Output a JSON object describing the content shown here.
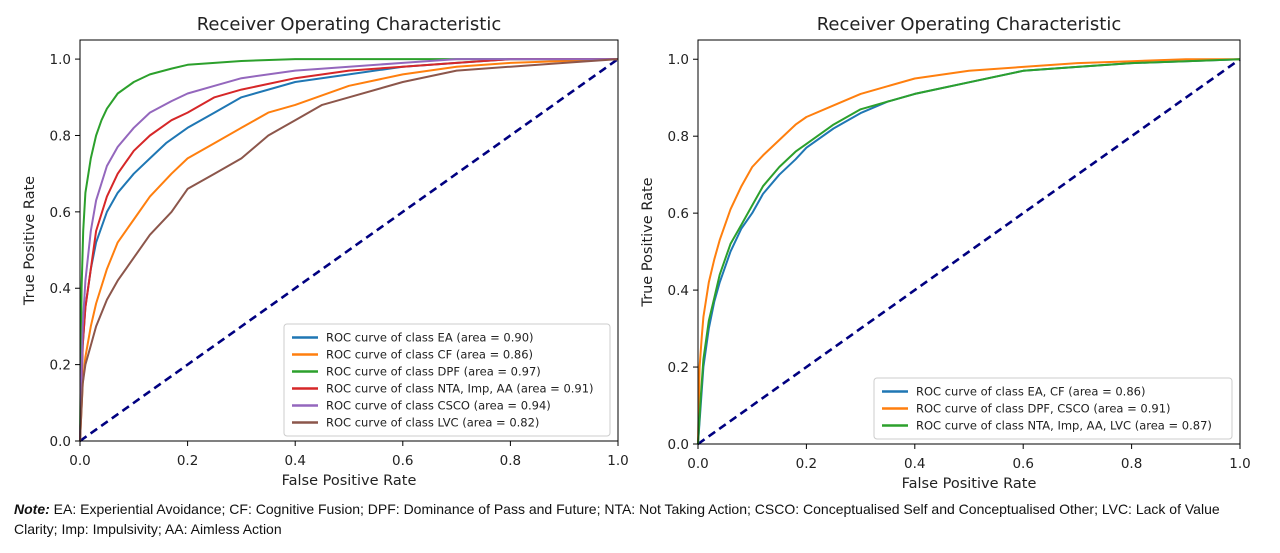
{
  "chart_data": [
    {
      "type": "line",
      "title": "Receiver Operating Characteristic",
      "xlabel": "False Positive Rate",
      "ylabel": "True Positive Rate",
      "xlim": [
        0,
        1
      ],
      "ylim": [
        0,
        1.05
      ],
      "xticks": [
        "0.0",
        "0.2",
        "0.4",
        "0.6",
        "0.8",
        "1.0"
      ],
      "yticks": [
        "0.0",
        "0.2",
        "0.4",
        "0.6",
        "0.8",
        "1.0"
      ],
      "legend_position": "lower-right",
      "grid": false,
      "diagonal": {
        "color": "#000080",
        "style": "dashed"
      },
      "series": [
        {
          "name": "ROC curve of class EA (area = 0.90)",
          "color": "#1f77b4",
          "x": [
            0,
            0.005,
            0.01,
            0.02,
            0.03,
            0.05,
            0.07,
            0.1,
            0.13,
            0.16,
            0.2,
            0.25,
            0.3,
            0.4,
            0.5,
            0.6,
            0.7,
            0.8,
            1.0
          ],
          "y": [
            0,
            0.25,
            0.35,
            0.45,
            0.52,
            0.6,
            0.65,
            0.7,
            0.74,
            0.78,
            0.82,
            0.86,
            0.9,
            0.94,
            0.96,
            0.98,
            0.99,
            1.0,
            1.0
          ]
        },
        {
          "name": "ROC curve of class CF (area = 0.86)",
          "color": "#ff7f0e",
          "x": [
            0,
            0.005,
            0.01,
            0.02,
            0.03,
            0.05,
            0.07,
            0.1,
            0.13,
            0.17,
            0.2,
            0.25,
            0.3,
            0.35,
            0.4,
            0.5,
            0.6,
            0.7,
            0.8,
            1.0
          ],
          "y": [
            0,
            0.15,
            0.22,
            0.3,
            0.36,
            0.45,
            0.52,
            0.58,
            0.64,
            0.7,
            0.74,
            0.78,
            0.82,
            0.86,
            0.88,
            0.93,
            0.96,
            0.98,
            0.99,
            1.0
          ]
        },
        {
          "name": "ROC curve of class DPF (area = 0.97)",
          "color": "#2ca02c",
          "x": [
            0,
            0.003,
            0.006,
            0.01,
            0.02,
            0.03,
            0.04,
            0.05,
            0.07,
            0.1,
            0.13,
            0.17,
            0.2,
            0.3,
            0.4,
            1.0
          ],
          "y": [
            0,
            0.4,
            0.55,
            0.65,
            0.74,
            0.8,
            0.84,
            0.87,
            0.91,
            0.94,
            0.96,
            0.975,
            0.985,
            0.995,
            1.0,
            1.0
          ]
        },
        {
          "name": "ROC curve of class NTA, Imp, AA (area = 0.91)",
          "color": "#d62728",
          "x": [
            0,
            0.005,
            0.01,
            0.02,
            0.03,
            0.05,
            0.07,
            0.1,
            0.13,
            0.17,
            0.2,
            0.25,
            0.3,
            0.4,
            0.5,
            0.6,
            0.7,
            0.8,
            1.0
          ],
          "y": [
            0,
            0.25,
            0.35,
            0.45,
            0.55,
            0.64,
            0.7,
            0.76,
            0.8,
            0.84,
            0.86,
            0.9,
            0.92,
            0.95,
            0.97,
            0.98,
            0.99,
            1.0,
            1.0
          ]
        },
        {
          "name": "ROC curve of class CSCO (area = 0.94)",
          "color": "#9467bd",
          "x": [
            0,
            0.005,
            0.01,
            0.02,
            0.03,
            0.05,
            0.07,
            0.1,
            0.13,
            0.17,
            0.2,
            0.25,
            0.3,
            0.4,
            0.5,
            0.6,
            0.7,
            1.0
          ],
          "y": [
            0,
            0.3,
            0.42,
            0.55,
            0.63,
            0.72,
            0.77,
            0.82,
            0.86,
            0.89,
            0.91,
            0.93,
            0.95,
            0.97,
            0.98,
            0.99,
            1.0,
            1.0
          ]
        },
        {
          "name": "ROC curve of class LVC (area = 0.82)",
          "color": "#8c564b",
          "x": [
            0,
            0.005,
            0.01,
            0.02,
            0.03,
            0.05,
            0.07,
            0.1,
            0.13,
            0.17,
            0.2,
            0.25,
            0.3,
            0.35,
            0.4,
            0.45,
            0.5,
            0.6,
            0.7,
            0.8,
            0.9,
            1.0
          ],
          "y": [
            0,
            0.15,
            0.2,
            0.25,
            0.3,
            0.37,
            0.42,
            0.48,
            0.54,
            0.6,
            0.66,
            0.7,
            0.74,
            0.8,
            0.84,
            0.88,
            0.9,
            0.94,
            0.97,
            0.98,
            0.99,
            1.0
          ]
        }
      ]
    },
    {
      "type": "line",
      "title": "Receiver Operating Characteristic",
      "xlabel": "False Positive Rate",
      "ylabel": "True Positive Rate",
      "xlim": [
        0,
        1
      ],
      "ylim": [
        0,
        1.05
      ],
      "xticks": [
        "0.0",
        "0.2",
        "0.4",
        "0.6",
        "0.8",
        "1.0"
      ],
      "yticks": [
        "0.0",
        "0.2",
        "0.4",
        "0.6",
        "0.8",
        "1.0"
      ],
      "legend_position": "lower-right",
      "grid": false,
      "diagonal": {
        "color": "#000080",
        "style": "dashed"
      },
      "series": [
        {
          "name": "ROC curve of class EA, CF (area = 0.86)",
          "color": "#1f77b4",
          "x": [
            0,
            0.005,
            0.01,
            0.02,
            0.03,
            0.04,
            0.06,
            0.08,
            0.1,
            0.12,
            0.15,
            0.18,
            0.2,
            0.25,
            0.3,
            0.35,
            0.4,
            0.5,
            0.6,
            0.7,
            0.8,
            0.9,
            1.0
          ],
          "y": [
            0,
            0.1,
            0.2,
            0.3,
            0.37,
            0.42,
            0.5,
            0.56,
            0.6,
            0.65,
            0.7,
            0.74,
            0.77,
            0.82,
            0.86,
            0.89,
            0.91,
            0.94,
            0.97,
            0.98,
            0.99,
            0.995,
            1.0
          ]
        },
        {
          "name": "ROC curve of class DPF, CSCO (area = 0.91)",
          "color": "#ff7f0e",
          "x": [
            0,
            0.003,
            0.007,
            0.01,
            0.02,
            0.03,
            0.04,
            0.06,
            0.08,
            0.1,
            0.12,
            0.15,
            0.18,
            0.2,
            0.25,
            0.3,
            0.35,
            0.4,
            0.5,
            0.6,
            0.7,
            0.8,
            0.9,
            1.0
          ],
          "y": [
            0,
            0.2,
            0.28,
            0.33,
            0.42,
            0.48,
            0.53,
            0.61,
            0.67,
            0.72,
            0.75,
            0.79,
            0.83,
            0.85,
            0.88,
            0.91,
            0.93,
            0.95,
            0.97,
            0.98,
            0.99,
            0.995,
            1.0,
            1.0
          ]
        },
        {
          "name": "ROC curve of class NTA, Imp, AA, LVC (area = 0.87)",
          "color": "#2ca02c",
          "x": [
            0,
            0.005,
            0.01,
            0.02,
            0.03,
            0.04,
            0.06,
            0.08,
            0.1,
            0.12,
            0.15,
            0.18,
            0.2,
            0.25,
            0.3,
            0.35,
            0.4,
            0.5,
            0.6,
            0.7,
            0.8,
            0.9,
            1.0
          ],
          "y": [
            0,
            0.12,
            0.22,
            0.32,
            0.38,
            0.44,
            0.52,
            0.57,
            0.62,
            0.67,
            0.72,
            0.76,
            0.78,
            0.83,
            0.87,
            0.89,
            0.91,
            0.94,
            0.97,
            0.98,
            0.99,
            0.995,
            1.0
          ]
        }
      ]
    }
  ],
  "note": {
    "label": "Note:",
    "text": " EA: Experiential Avoidance; CF: Cognitive Fusion; DPF: Dominance of Pass and Future; NTA: Not Taking Action; CSCO: Conceptualised Self and Conceptualised Other; LVC: Lack of Value Clarity; Imp: Impulsivity; AA: Aimless Action"
  }
}
